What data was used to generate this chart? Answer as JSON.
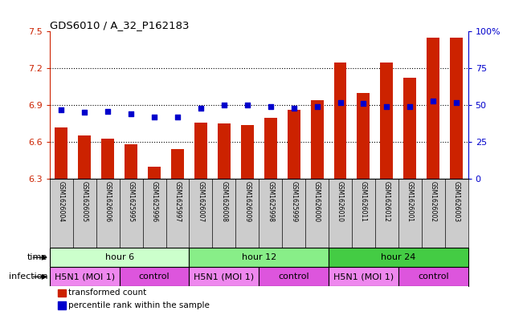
{
  "title": "GDS6010 / A_32_P162183",
  "samples": [
    "GSM1626004",
    "GSM1626005",
    "GSM1626006",
    "GSM1625995",
    "GSM1625996",
    "GSM1625997",
    "GSM1626007",
    "GSM1626008",
    "GSM1626009",
    "GSM1625998",
    "GSM1625999",
    "GSM1626000",
    "GSM1626010",
    "GSM1626011",
    "GSM1626012",
    "GSM1626001",
    "GSM1626002",
    "GSM1626003"
  ],
  "bar_values": [
    6.72,
    6.65,
    6.63,
    6.58,
    6.4,
    6.54,
    6.76,
    6.75,
    6.74,
    6.8,
    6.86,
    6.94,
    7.25,
    7.0,
    7.25,
    7.12,
    7.45,
    7.45
  ],
  "dot_values": [
    47,
    45,
    46,
    44,
    42,
    42,
    48,
    50,
    50,
    49,
    48,
    49,
    52,
    51,
    49,
    49,
    53,
    52
  ],
  "bar_color": "#cc2200",
  "dot_color": "#0000cc",
  "ylim_left": [
    6.3,
    7.5
  ],
  "ylim_right": [
    0,
    100
  ],
  "yticks_left": [
    6.3,
    6.6,
    6.9,
    7.2,
    7.5
  ],
  "yticks_right": [
    0,
    25,
    50,
    75,
    100
  ],
  "ytick_labels_right": [
    "0",
    "25",
    "50",
    "75",
    "100%"
  ],
  "hlines": [
    6.6,
    6.9,
    7.2
  ],
  "time_groups": [
    {
      "label": "hour 6",
      "start": 0,
      "end": 6,
      "color": "#ccffcc"
    },
    {
      "label": "hour 12",
      "start": 6,
      "end": 12,
      "color": "#88ee88"
    },
    {
      "label": "hour 24",
      "start": 12,
      "end": 18,
      "color": "#44cc44"
    }
  ],
  "infection_groups": [
    {
      "label": "H5N1 (MOI 1)",
      "start": 0,
      "end": 3,
      "color": "#ee88ee"
    },
    {
      "label": "control",
      "start": 3,
      "end": 6,
      "color": "#dd55dd"
    },
    {
      "label": "H5N1 (MOI 1)",
      "start": 6,
      "end": 9,
      "color": "#ee88ee"
    },
    {
      "label": "control",
      "start": 9,
      "end": 12,
      "color": "#dd55dd"
    },
    {
      "label": "H5N1 (MOI 1)",
      "start": 12,
      "end": 15,
      "color": "#ee88ee"
    },
    {
      "label": "control",
      "start": 15,
      "end": 18,
      "color": "#dd55dd"
    }
  ],
  "legend_bar_label": "transformed count",
  "legend_dot_label": "percentile rank within the sample",
  "bar_color_label": "#cc2200",
  "dot_color_label": "#0000cc",
  "background_color": "#ffffff",
  "sample_label_bg": "#cccccc"
}
